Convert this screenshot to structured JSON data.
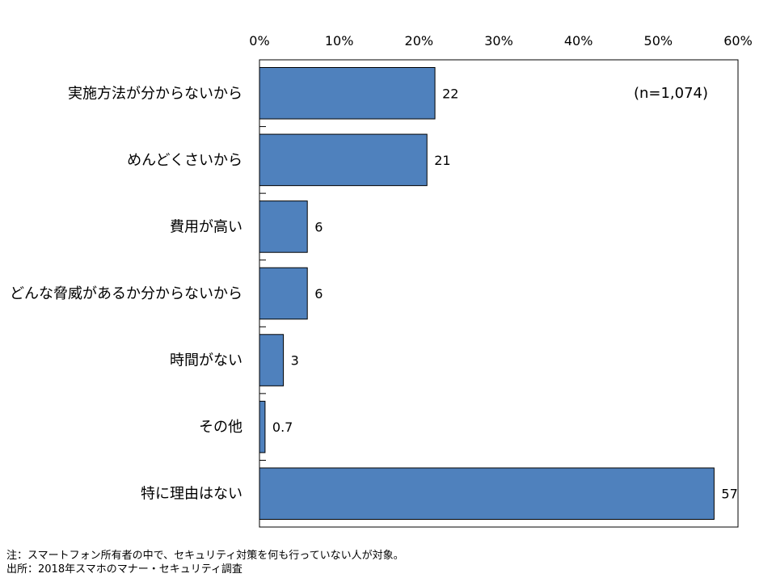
{
  "chart_data": {
    "type": "bar",
    "orientation": "horizontal",
    "categories": [
      "実施方法が分からないから",
      "めんどくさいから",
      "費用が高い",
      "どんな脅威があるか分からないから",
      "時間がない",
      "その他",
      "特に理由はない"
    ],
    "values": [
      22,
      21,
      6,
      6,
      3,
      0.7,
      57
    ],
    "value_labels": [
      "22",
      "21",
      "6",
      "6",
      "3",
      "0.7",
      "57"
    ],
    "x_ticks": [
      "0%",
      "10%",
      "20%",
      "30%",
      "40%",
      "50%",
      "60%"
    ],
    "xlim": [
      0,
      60
    ],
    "x_axis_position": "top",
    "annotation": "(n=1,074)",
    "bar_color": "#4f81bd",
    "grid": false
  },
  "notes": {
    "note": "注：スマートフォン所有者の中で、セキュリティ対策を何も行っていない人が対象。",
    "source": "出所：2018年スマホのマナー・セキュリティ調査"
  }
}
